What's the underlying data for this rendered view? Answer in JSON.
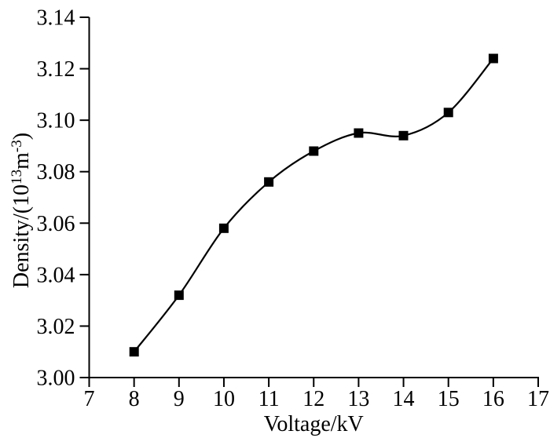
{
  "figure": {
    "background_color": "#ffffff",
    "axis_color": "#000000"
  },
  "chart_data": {
    "type": "line",
    "series_name": "density-vs-voltage",
    "title": "",
    "x": [
      8,
      9,
      10,
      11,
      12,
      13,
      14,
      15,
      16
    ],
    "values": [
      3.01,
      3.032,
      3.058,
      3.076,
      3.088,
      3.095,
      3.094,
      3.103,
      3.124
    ],
    "xlabel": "Voltage/kV",
    "ylabel_parts": {
      "prefix": "Density/(10",
      "sup1": "13",
      "mid": "m",
      "sup2": "-3",
      "suffix": ")"
    },
    "xlim": [
      7,
      17
    ],
    "ylim": [
      3.0,
      3.14
    ],
    "xtick_labels": [
      "7",
      "8",
      "9",
      "10",
      "11",
      "12",
      "13",
      "14",
      "15",
      "16",
      "17"
    ],
    "xticks": [
      7,
      8,
      9,
      10,
      11,
      12,
      13,
      14,
      15,
      16,
      17
    ],
    "ytick_labels": [
      "3.00",
      "3.02",
      "3.04",
      "3.06",
      "3.08",
      "3.10",
      "3.12",
      "3.14"
    ],
    "yticks": [
      3.0,
      3.02,
      3.04,
      3.06,
      3.08,
      3.1,
      3.12,
      3.14
    ],
    "grid": false,
    "legend": "none",
    "curve": "smooth",
    "marker": "filled-square",
    "line_color": "#000000",
    "marker_color": "#000000"
  }
}
